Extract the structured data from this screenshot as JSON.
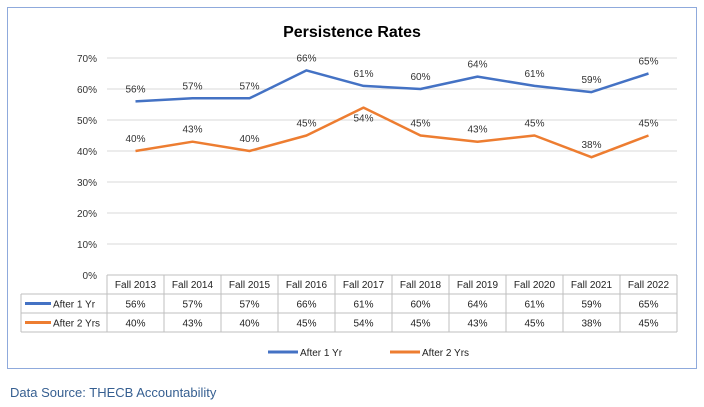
{
  "chart_data": {
    "type": "line",
    "title": "Persistence Rates",
    "categories": [
      "Fall 2013",
      "Fall 2014",
      "Fall 2015",
      "Fall 2016",
      "Fall 2017",
      "Fall 2018",
      "Fall 2019",
      "Fall 2020",
      "Fall 2021",
      "Fall 2022"
    ],
    "series": [
      {
        "name": "After 1 Yr",
        "color": "#4472c4",
        "values": [
          56,
          57,
          57,
          66,
          61,
          60,
          64,
          61,
          59,
          65
        ]
      },
      {
        "name": "After 2 Yrs",
        "color": "#ed7d31",
        "values": [
          40,
          43,
          40,
          45,
          54,
          45,
          43,
          45,
          38,
          45
        ]
      }
    ],
    "y_ticks": [
      "0%",
      "10%",
      "20%",
      "30%",
      "40%",
      "50%",
      "60%",
      "70%"
    ],
    "ylim": [
      0,
      70
    ],
    "value_suffix": "%",
    "grid": true,
    "legend": "bottom",
    "data_table": true
  },
  "source": "Data Source: THECB Accountability"
}
